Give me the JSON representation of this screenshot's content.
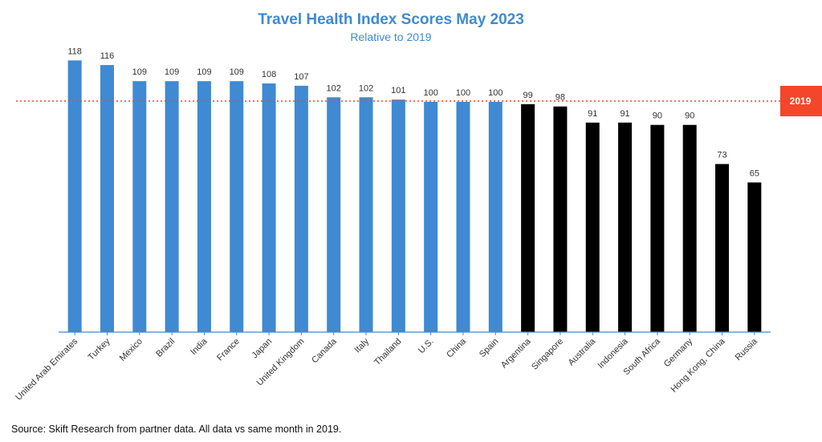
{
  "chart_data": {
    "type": "bar",
    "title": "Travel Health Index Scores May 2023",
    "subtitle": "Relative to 2019",
    "categories": [
      "United Arab Emirates",
      "Turkey",
      "Mexico",
      "Brazil",
      "India",
      "France",
      "Japan",
      "United Kingdom",
      "Canada",
      "Italy",
      "Thailand",
      "U.S.",
      "China",
      "Spain",
      "Argentina",
      "Singapore",
      "Australia",
      "Indonesia",
      "South Africa",
      "Germany",
      "Hong Kong, China",
      "Russia"
    ],
    "values": [
      118,
      116,
      109,
      109,
      109,
      109,
      108,
      107,
      102,
      102,
      101,
      100,
      100,
      100,
      99,
      98,
      91,
      91,
      90,
      90,
      73,
      65
    ],
    "bar_colors": [
      "#3f8ad2",
      "#3f8ad2",
      "#3f8ad2",
      "#3f8ad2",
      "#3f8ad2",
      "#3f8ad2",
      "#3f8ad2",
      "#3f8ad2",
      "#3f8ad2",
      "#3f8ad2",
      "#3f8ad2",
      "#3f8ad2",
      "#3f8ad2",
      "#3f8ad2",
      "#000000",
      "#000000",
      "#000000",
      "#000000",
      "#000000",
      "#000000",
      "#000000",
      "#000000"
    ],
    "reference_line": {
      "value": 100,
      "label": "2019",
      "color": "#f4462a"
    },
    "ylim": [
      0,
      125
    ],
    "grid": false,
    "legend": "none"
  },
  "source": "Source: Skift Research from partner data. All data vs same month in 2019."
}
